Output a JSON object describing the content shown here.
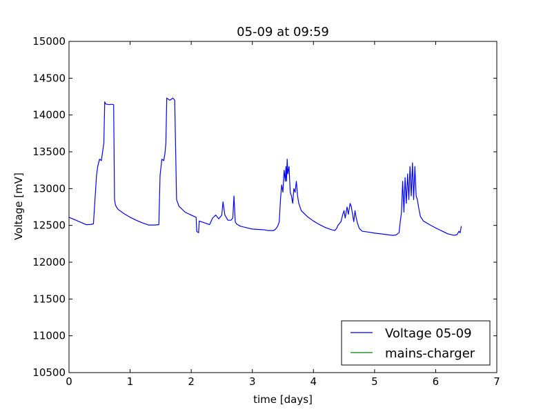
{
  "chart_data": {
    "type": "line",
    "title": "05-09 at 09:59",
    "xlabel": "time [days]",
    "ylabel": "Voltage [mV]",
    "xlim": [
      0,
      7
    ],
    "ylim": [
      10500,
      15000
    ],
    "xticks": [
      0,
      1,
      2,
      3,
      4,
      5,
      6,
      7
    ],
    "yticks": [
      10500,
      11000,
      11500,
      12000,
      12500,
      13000,
      13500,
      14000,
      14500,
      15000
    ],
    "grid": false,
    "legend_position": "lower-right",
    "series": [
      {
        "name": "Voltage 05-09",
        "color": "#0000ff",
        "x": [
          0,
          0.1,
          0.2,
          0.28,
          0.35,
          0.4,
          0.45,
          0.47,
          0.5,
          0.53,
          0.55,
          0.57,
          0.585,
          0.6,
          0.65,
          0.7,
          0.73,
          0.745,
          0.76,
          0.77,
          0.8,
          0.9,
          1.0,
          1.1,
          1.2,
          1.3,
          1.4,
          1.47,
          1.49,
          1.52,
          1.55,
          1.57,
          1.585,
          1.6,
          1.65,
          1.7,
          1.73,
          1.745,
          1.76,
          1.8,
          1.9,
          2.0,
          2.08,
          2.09,
          2.12,
          2.13,
          2.2,
          2.3,
          2.35,
          2.4,
          2.45,
          2.5,
          2.52,
          2.55,
          2.6,
          2.65,
          2.68,
          2.7,
          2.72,
          2.74,
          2.8,
          2.9,
          3.0,
          3.1,
          3.2,
          3.25,
          3.3,
          3.35,
          3.38,
          3.4,
          3.42,
          3.44,
          3.46,
          3.48,
          3.5,
          3.52,
          3.54,
          3.55,
          3.56,
          3.57,
          3.58,
          3.6,
          3.62,
          3.64,
          3.66,
          3.68,
          3.7,
          3.72,
          3.74,
          3.76,
          3.8,
          3.9,
          4.0,
          4.1,
          4.2,
          4.3,
          4.35,
          4.38,
          4.4,
          4.45,
          4.48,
          4.5,
          4.52,
          4.55,
          4.57,
          4.6,
          4.62,
          4.64,
          4.66,
          4.68,
          4.7,
          4.72,
          4.75,
          4.8,
          4.9,
          5.0,
          5.1,
          5.2,
          5.3,
          5.35,
          5.4,
          5.42,
          5.44,
          5.46,
          5.48,
          5.5,
          5.52,
          5.54,
          5.56,
          5.58,
          5.6,
          5.62,
          5.64,
          5.66,
          5.68,
          5.7,
          5.72,
          5.75,
          5.8,
          5.9,
          6.0,
          6.1,
          6.2,
          6.3,
          6.35,
          6.38,
          6.4,
          6.42
        ],
        "values": [
          12610,
          12575,
          12540,
          12510,
          12512,
          12520,
          13180,
          13300,
          13400,
          13380,
          13500,
          13620,
          14180,
          14150,
          14140,
          14145,
          14140,
          12850,
          12780,
          12760,
          12720,
          12660,
          12610,
          12570,
          12535,
          12505,
          12505,
          12510,
          13180,
          13400,
          13380,
          13480,
          13620,
          14230,
          14200,
          14230,
          14200,
          13500,
          12850,
          12760,
          12680,
          12640,
          12610,
          12420,
          12400,
          12560,
          12540,
          12510,
          12600,
          12640,
          12590,
          12640,
          12820,
          12640,
          12570,
          12570,
          12600,
          12900,
          12550,
          12520,
          12490,
          12470,
          12450,
          12445,
          12440,
          12430,
          12430,
          12430,
          12450,
          12470,
          12500,
          12550,
          12850,
          13050,
          12950,
          13250,
          13100,
          13300,
          13100,
          13400,
          13200,
          13300,
          12950,
          12900,
          12800,
          13000,
          12950,
          13100,
          12900,
          12800,
          12700,
          12620,
          12560,
          12510,
          12470,
          12440,
          12430,
          12460,
          12500,
          12550,
          12650,
          12700,
          12600,
          12750,
          12650,
          12800,
          12750,
          12650,
          12550,
          12700,
          12600,
          12530,
          12460,
          12420,
          12410,
          12395,
          12385,
          12375,
          12365,
          12370,
          12400,
          12550,
          12670,
          13100,
          12680,
          13150,
          12800,
          13200,
          12850,
          13300,
          12900,
          13350,
          12850,
          13300,
          12900,
          12850,
          12750,
          12620,
          12560,
          12510,
          12465,
          12425,
          12385,
          12365,
          12375,
          12420,
          12400,
          12490
        ]
      },
      {
        "name": "mains-charger",
        "color": "#008000",
        "x": [],
        "values": []
      }
    ]
  }
}
